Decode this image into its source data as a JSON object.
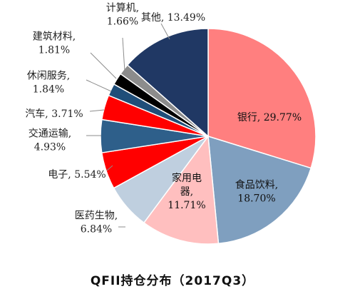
{
  "chart_data": {
    "type": "pie",
    "title": "QFII持仓分布（2017Q3）",
    "slices": [
      {
        "label": "银行",
        "value": 29.77,
        "display": "银行, 29.77%",
        "color": "#FF7F7F"
      },
      {
        "label": "食品饮料",
        "value": 18.7,
        "display": "食品饮料, 18.70%",
        "color": "#7F9FBF"
      },
      {
        "label": "家用电器",
        "value": 11.71,
        "display": "家用电器, 11.71%",
        "color": "#FFBFBF"
      },
      {
        "label": "医药生物",
        "value": 6.84,
        "display": "医药生物, 6.84%",
        "color": "#BFCFDF"
      },
      {
        "label": "电子",
        "value": 5.54,
        "display": "电子, 5.54%",
        "color": "#FF0000"
      },
      {
        "label": "交通运输",
        "value": 4.93,
        "display": "交通运输, 4.93%",
        "color": "#2E5F8A"
      },
      {
        "label": "汽车",
        "value": 3.71,
        "display": "汽车, 3.71%",
        "color": "#FF0000"
      },
      {
        "label": "休闲服务",
        "value": 1.84,
        "display": "休闲服务, 1.84%",
        "color": "#1F4E79"
      },
      {
        "label": "建筑材料",
        "value": 1.81,
        "display": "建筑材料, 1.81%",
        "color": "#000000"
      },
      {
        "label": "计算机",
        "value": 1.66,
        "display": "计算机, 1.66%",
        "color": "#8C8C8C"
      },
      {
        "label": "其他",
        "value": 13.49,
        "display": "其他, 13.49%",
        "color": "#203864"
      }
    ]
  }
}
